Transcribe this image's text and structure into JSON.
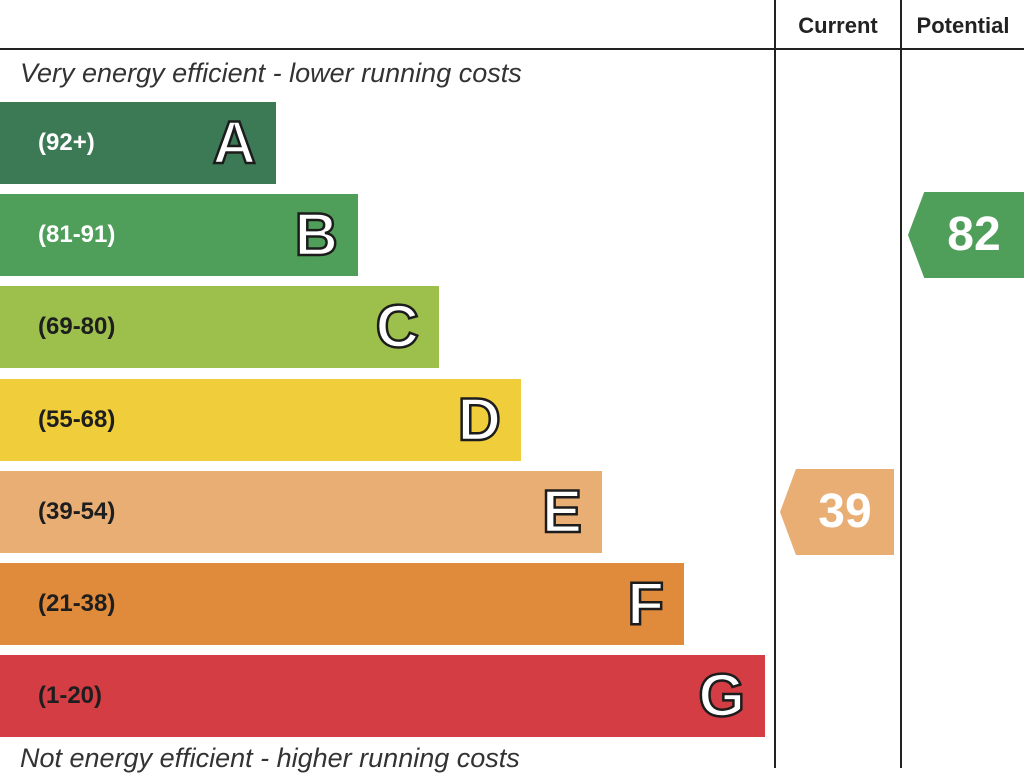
{
  "chart_data": {
    "type": "bar",
    "header": {
      "current_label": "Current",
      "potential_label": "Potential"
    },
    "top_caption": "Very energy efficient - lower running costs",
    "bottom_caption": "Not energy efficient - higher running costs",
    "bands": [
      {
        "letter": "A",
        "range": "(92+)",
        "color": "#3c7a55",
        "range_color": "#ffffff"
      },
      {
        "letter": "B",
        "range": "(81-91)",
        "color": "#4f9e5a",
        "range_color": "#ffffff"
      },
      {
        "letter": "C",
        "range": "(69-80)",
        "color": "#9dbf4c",
        "range_color": "#1e1e1e"
      },
      {
        "letter": "D",
        "range": "(55-68)",
        "color": "#efcd3b",
        "range_color": "#1e1e1e"
      },
      {
        "letter": "E",
        "range": "(39-54)",
        "color": "#e9ae73",
        "range_color": "#1e1e1e"
      },
      {
        "letter": "F",
        "range": "(21-38)",
        "color": "#e08a3c",
        "range_color": "#1e1e1e"
      },
      {
        "letter": "G",
        "range": "(1-20)",
        "color": "#d43d44",
        "range_color": "#1e1e1e"
      }
    ],
    "current": {
      "value": "39",
      "band": "E",
      "color": "#e9ae73"
    },
    "potential": {
      "value": "82",
      "band": "B",
      "color": "#4f9e5a"
    }
  }
}
